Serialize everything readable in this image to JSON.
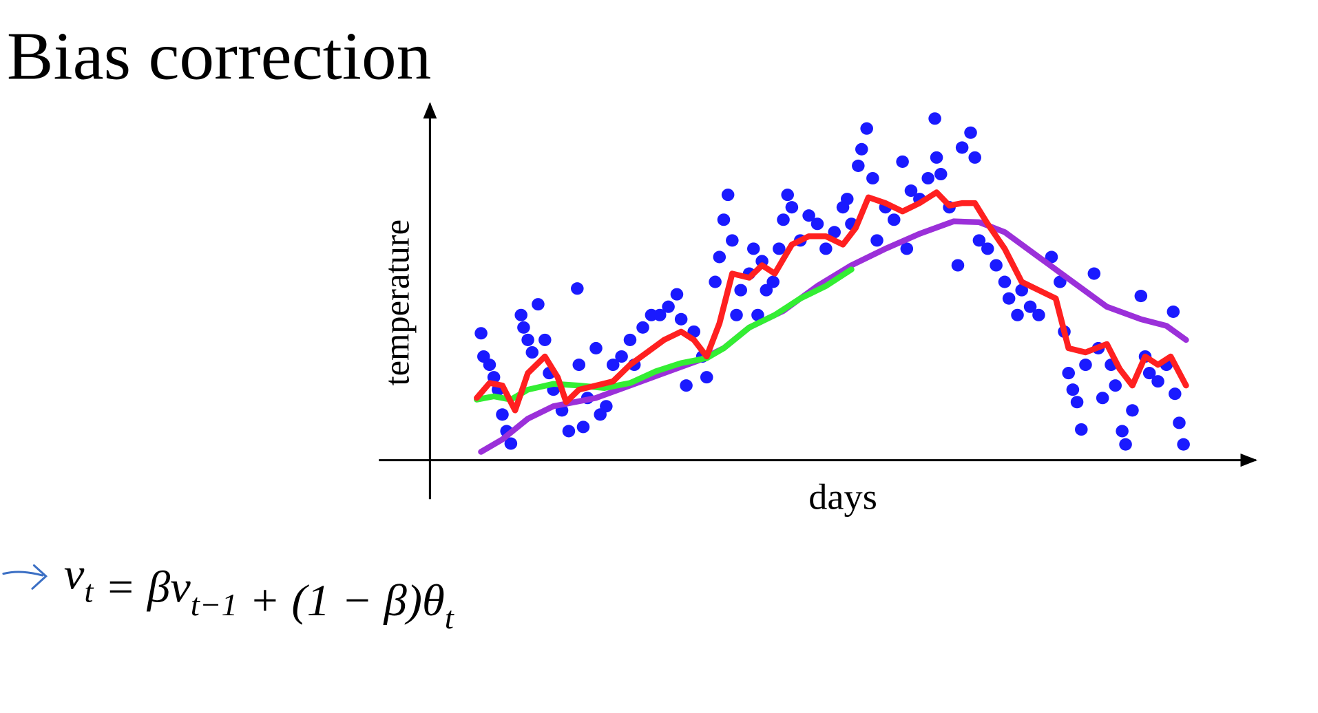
{
  "chart_data": {
    "type": "scatter",
    "title": "Bias correction",
    "xlabel": "days",
    "ylabel": "temperature",
    "xlim": [
      0,
      96
    ],
    "ylim": [
      0,
      86
    ],
    "series": [
      {
        "type": "scatter",
        "color": "#1a1aff",
        "x": [
          6.0,
          6.3,
          7,
          7.5,
          8,
          8.5,
          9,
          9.5,
          10.7,
          11,
          11.5,
          12,
          12.7,
          13.5,
          14,
          14.5,
          15.5,
          16.3,
          17.3,
          17.5,
          18,
          18.5,
          19.5,
          20,
          20.7,
          21.5,
          22.5,
          23.5,
          24,
          25,
          26,
          27,
          28,
          29,
          29.5,
          30.1,
          31,
          32,
          32.5,
          33.5,
          34,
          34.5,
          35,
          35.5,
          36,
          36.5,
          37.5,
          38,
          38.5,
          39,
          39.5,
          40.3,
          41,
          41.5,
          42,
          42.5,
          43.5,
          44.5,
          45.5,
          46.5,
          47.5,
          48.5,
          49,
          49.5,
          50.3,
          50.7,
          51.3,
          52,
          52.5,
          53.5,
          54.5,
          55.5,
          56,
          56.5,
          57.5,
          58.5,
          59.3,
          59.5,
          60,
          61,
          62,
          62.5,
          63.5,
          64,
          64.5,
          65.5,
          66.5,
          67.5,
          68,
          69,
          69.5,
          70.5,
          71.5,
          73,
          74,
          74.5,
          75,
          75.5,
          76,
          76.5,
          77,
          78,
          78.5,
          79,
          80,
          80.5,
          81.3,
          81.7,
          82.5,
          83.5,
          84,
          84.5,
          85.5,
          86.5,
          87.3,
          87.5,
          88,
          88.5
        ],
        "values": [
          30.6,
          25,
          23,
          20,
          17,
          11,
          7,
          4,
          35,
          32,
          29,
          26,
          37.6,
          29,
          21,
          17,
          12,
          7,
          41.4,
          23,
          8,
          15,
          27,
          11,
          13,
          23,
          25,
          29,
          23,
          32,
          35,
          35,
          37,
          40,
          34,
          18,
          31,
          25,
          20,
          43,
          49,
          58,
          64,
          53,
          35,
          41,
          45,
          51,
          35,
          48,
          41,
          43,
          51,
          58,
          64,
          61,
          53,
          59,
          57,
          51,
          55,
          61,
          63,
          57,
          71,
          75,
          80,
          68,
          53,
          61,
          58,
          72,
          51,
          65,
          63,
          68,
          82.4,
          73,
          69,
          61,
          47,
          75.4,
          79,
          73,
          53,
          51,
          47,
          43,
          39,
          35,
          41,
          37,
          35,
          49,
          43,
          31,
          21,
          17,
          14,
          7.4,
          23,
          45,
          27,
          15,
          23,
          18,
          7,
          3.8,
          12,
          39.6,
          25,
          21,
          19,
          23,
          35.8,
          16,
          9,
          3.8
        ]
      },
      {
        "type": "line",
        "color": "#9b30d9",
        "x": [
          6,
          8.5,
          11.5,
          14.5,
          19.5,
          23.5,
          27.5,
          31.5,
          34.5,
          37.5,
          41.5,
          45.5,
          49.5,
          53.5,
          57.5,
          61.5,
          64.5,
          67.5,
          71.5,
          75.5,
          79.5,
          83.5,
          86.5,
          88.8
        ],
        "values": [
          2,
          5,
          10,
          13,
          15,
          18,
          21,
          24,
          27,
          32,
          36,
          42,
          47,
          51,
          54.6,
          57.6,
          57.4,
          55,
          49,
          43,
          37,
          34,
          32.4,
          29
        ]
      },
      {
        "type": "line",
        "color": "#33ee33",
        "x": [
          5.5,
          7.5,
          9.5,
          11.5,
          14.5,
          17.5,
          20.5,
          23.5,
          26.5,
          29.5,
          32.5,
          34.5,
          37.5,
          40.5,
          43.5,
          46.5,
          49.5
        ],
        "values": [
          14.6,
          15.4,
          14.6,
          17,
          18.4,
          18,
          17.4,
          18.6,
          21.4,
          23.4,
          24.6,
          27,
          32,
          35,
          39,
          42,
          46
        ]
      },
      {
        "type": "line",
        "color": "#ff2020",
        "x": [
          5.5,
          7,
          8.5,
          10,
          11.5,
          13.5,
          15,
          16,
          17.5,
          19.5,
          21.5,
          23.5,
          25.5,
          27.5,
          29.5,
          31,
          32.5,
          34,
          35.5,
          37.5,
          39,
          40.5,
          42.5,
          44.5,
          46.5,
          48.5,
          50,
          51.5,
          53.5,
          55.5,
          57.5,
          59.5,
          61,
          62.5,
          64,
          65.5,
          67.5,
          69.5,
          71.5,
          73.5,
          75,
          77,
          79.5,
          81,
          82.5,
          84,
          85.5,
          87,
          88.8
        ],
        "values": [
          15,
          18.6,
          18,
          12,
          21,
          25,
          20,
          14,
          17,
          18,
          19,
          23,
          26,
          29,
          31,
          29,
          25,
          33,
          45,
          44,
          47,
          45,
          52,
          54,
          54,
          52,
          56,
          63.4,
          62,
          60,
          62,
          64.6,
          61.4,
          62,
          62,
          57,
          51,
          43,
          41,
          39,
          27,
          26,
          28,
          22,
          18,
          25,
          23,
          25,
          18
        ]
      }
    ]
  },
  "formula": [
    {
      "base": "v",
      "sub": "t"
    },
    {
      "base": " = βv",
      "sub": "t−1"
    },
    {
      "base": " + (1 − β)θ",
      "sub": "t"
    }
  ]
}
